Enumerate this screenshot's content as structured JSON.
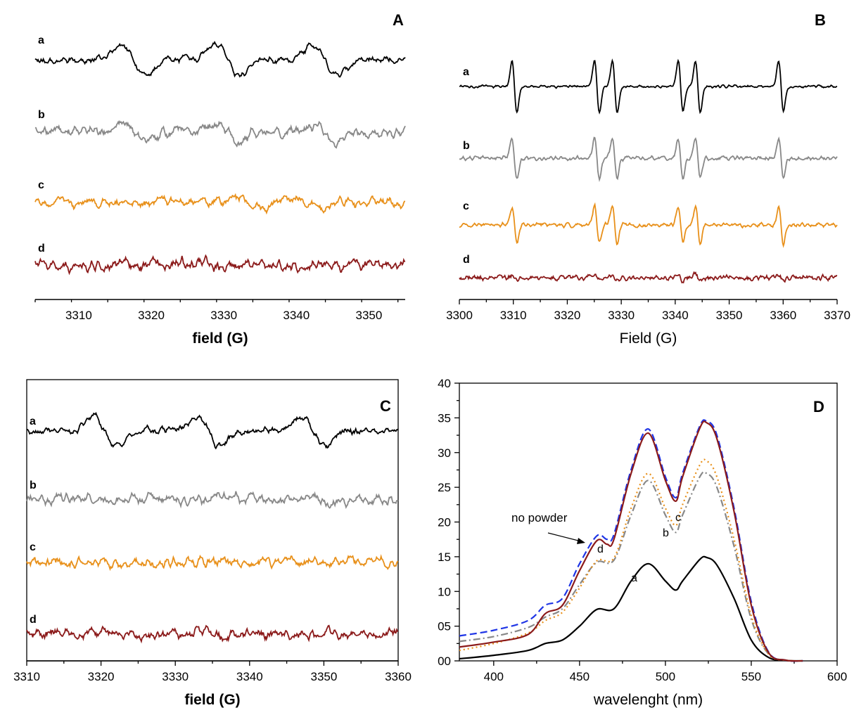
{
  "colors": {
    "a": "#000000",
    "b": "#888888",
    "c": "#e8901a",
    "d": "#8b1a1a",
    "no_powder": "#1f35e6"
  },
  "chart_data": [
    {
      "panel": "A",
      "type": "line",
      "xlabel": "field (G)",
      "ylabel": "",
      "xlim": [
        3304,
        3355
      ],
      "xticks": [
        3310,
        3320,
        3330,
        3340,
        3350
      ],
      "grid": false,
      "trace_labels": [
        "a",
        "b",
        "c",
        "d"
      ],
      "series": [
        {
          "name": "a",
          "lines": [
            3317.5,
            3330.5,
            3344.0
          ],
          "amp": 1.0,
          "noise": 0.18
        },
        {
          "name": "b",
          "lines": [
            3317.5,
            3330.5,
            3344.0
          ],
          "amp": 0.55,
          "noise": 0.28
        },
        {
          "name": "c",
          "lines": [
            3333.5,
            3341.5
          ],
          "amp": 0.35,
          "noise": 0.25
        },
        {
          "name": "d",
          "lines": [],
          "amp": 0.0,
          "noise": 0.3
        }
      ]
    },
    {
      "panel": "B",
      "type": "line",
      "xlabel": "Field (G)",
      "ylabel": "",
      "xlim": [
        3300,
        3370
      ],
      "xticks": [
        3300,
        3310,
        3320,
        3330,
        3340,
        3350,
        3360,
        3370
      ],
      "grid": false,
      "trace_labels": [
        "a",
        "b",
        "c",
        "d"
      ],
      "series": [
        {
          "name": "a",
          "lines": [
            3310.2,
            3325.5,
            3328.8,
            3341.0,
            3344.2,
            3359.6
          ],
          "amp": 1.0,
          "noise": 0.03
        },
        {
          "name": "b",
          "lines": [
            3310.2,
            3325.5,
            3328.8,
            3341.0,
            3344.2,
            3359.6
          ],
          "amp": 0.78,
          "noise": 0.05
        },
        {
          "name": "c",
          "lines": [
            3310.2,
            3325.5,
            3328.8,
            3341.0,
            3344.2,
            3359.6
          ],
          "amp": 0.72,
          "noise": 0.05
        },
        {
          "name": "d",
          "lines": [
            3310.2,
            3325.5,
            3328.8,
            3341.0,
            3344.2,
            3359.6
          ],
          "amp": 0.13,
          "noise": 0.06
        }
      ]
    },
    {
      "panel": "C",
      "type": "line",
      "xlabel": "field (G)",
      "ylabel": "",
      "xlim": [
        3310,
        3360
      ],
      "xticks": [
        3310,
        3320,
        3330,
        3340,
        3350,
        3360
      ],
      "grid": false,
      "trace_labels": [
        "a",
        "b",
        "c",
        "d"
      ],
      "series": [
        {
          "name": "a",
          "lines": [
            3320.5,
            3334.5,
            3348.5
          ],
          "amp": 1.0,
          "noise": 0.2
        },
        {
          "name": "b",
          "lines": [
            3349.5
          ],
          "amp": 0.2,
          "noise": 0.3
        },
        {
          "name": "c",
          "lines": [],
          "amp": 0.0,
          "noise": 0.3
        },
        {
          "name": "d",
          "lines": [],
          "amp": 0.0,
          "noise": 0.3
        }
      ]
    },
    {
      "panel": "D",
      "type": "line",
      "xlabel": "wavelenght (nm)",
      "ylabel": "",
      "xlim": [
        380,
        600
      ],
      "ylim": [
        0,
        40
      ],
      "xticks": [
        400,
        450,
        500,
        550,
        600
      ],
      "yticks": [
        "00",
        "05",
        "10",
        "15",
        "20",
        "25",
        "30",
        "35",
        "40"
      ],
      "grid": false,
      "annotation": "no powder",
      "curve_labels": [
        "a",
        "b",
        "c",
        "d"
      ],
      "series": [
        {
          "name": "a",
          "style": "solid",
          "x": [
            380,
            400,
            420,
            430,
            440,
            450,
            460,
            470,
            480,
            490,
            500,
            506,
            510,
            520,
            524,
            530,
            540,
            550,
            560,
            570,
            580
          ],
          "y": [
            0.3,
            0.8,
            1.5,
            2.5,
            3.0,
            5.0,
            7.4,
            7.5,
            11.5,
            14.0,
            11.5,
            10.2,
            11.5,
            14.6,
            14.9,
            13.8,
            9.0,
            3.0,
            0.5,
            0.05,
            0
          ]
        },
        {
          "name": "b",
          "style": "dashdot",
          "x": [
            380,
            400,
            420,
            430,
            440,
            450,
            460,
            470,
            480,
            490,
            500,
            506,
            510,
            520,
            524,
            530,
            540,
            550,
            560,
            570,
            580
          ],
          "y": [
            2.8,
            3.5,
            4.8,
            6.3,
            7.5,
            11.0,
            14.2,
            14.5,
            21.0,
            26.0,
            21.0,
            18.5,
            21.0,
            26.5,
            27.0,
            25.0,
            16.5,
            6.0,
            1.0,
            0.1,
            0
          ]
        },
        {
          "name": "c",
          "style": "dotted",
          "x": [
            380,
            400,
            420,
            430,
            440,
            450,
            460,
            470,
            480,
            490,
            500,
            506,
            510,
            520,
            524,
            530,
            540,
            550,
            560,
            570,
            580
          ],
          "y": [
            1.5,
            2.5,
            4.0,
            5.8,
            7.0,
            10.5,
            14.4,
            14.8,
            22.0,
            27.0,
            22.0,
            19.5,
            22.5,
            28.2,
            28.8,
            26.5,
            17.5,
            6.5,
            1.0,
            0.1,
            0
          ]
        },
        {
          "name": "d",
          "style": "solid",
          "x": [
            380,
            400,
            420,
            430,
            440,
            450,
            460,
            466,
            470,
            480,
            490,
            500,
            506,
            510,
            520,
            524,
            530,
            540,
            550,
            560,
            570,
            580
          ],
          "y": [
            2.0,
            2.7,
            3.8,
            6.8,
            8.0,
            13.0,
            17.3,
            16.8,
            17.5,
            27.0,
            32.8,
            26.0,
            23.0,
            26.5,
            33.5,
            34.3,
            32.0,
            21.5,
            8.0,
            1.2,
            0.1,
            0
          ]
        },
        {
          "name": "no powder",
          "style": "dashed",
          "x": [
            380,
            400,
            420,
            430,
            440,
            450,
            460,
            466,
            470,
            480,
            490,
            500,
            506,
            510,
            520,
            524,
            530,
            540,
            550,
            560,
            570,
            580
          ],
          "y": [
            3.6,
            4.4,
            5.8,
            8.0,
            9.0,
            14.0,
            18.0,
            17.5,
            18.2,
            27.5,
            33.4,
            26.5,
            23.5,
            27.0,
            33.8,
            34.5,
            32.5,
            22.0,
            8.5,
            1.3,
            0.1,
            0
          ]
        }
      ]
    }
  ]
}
